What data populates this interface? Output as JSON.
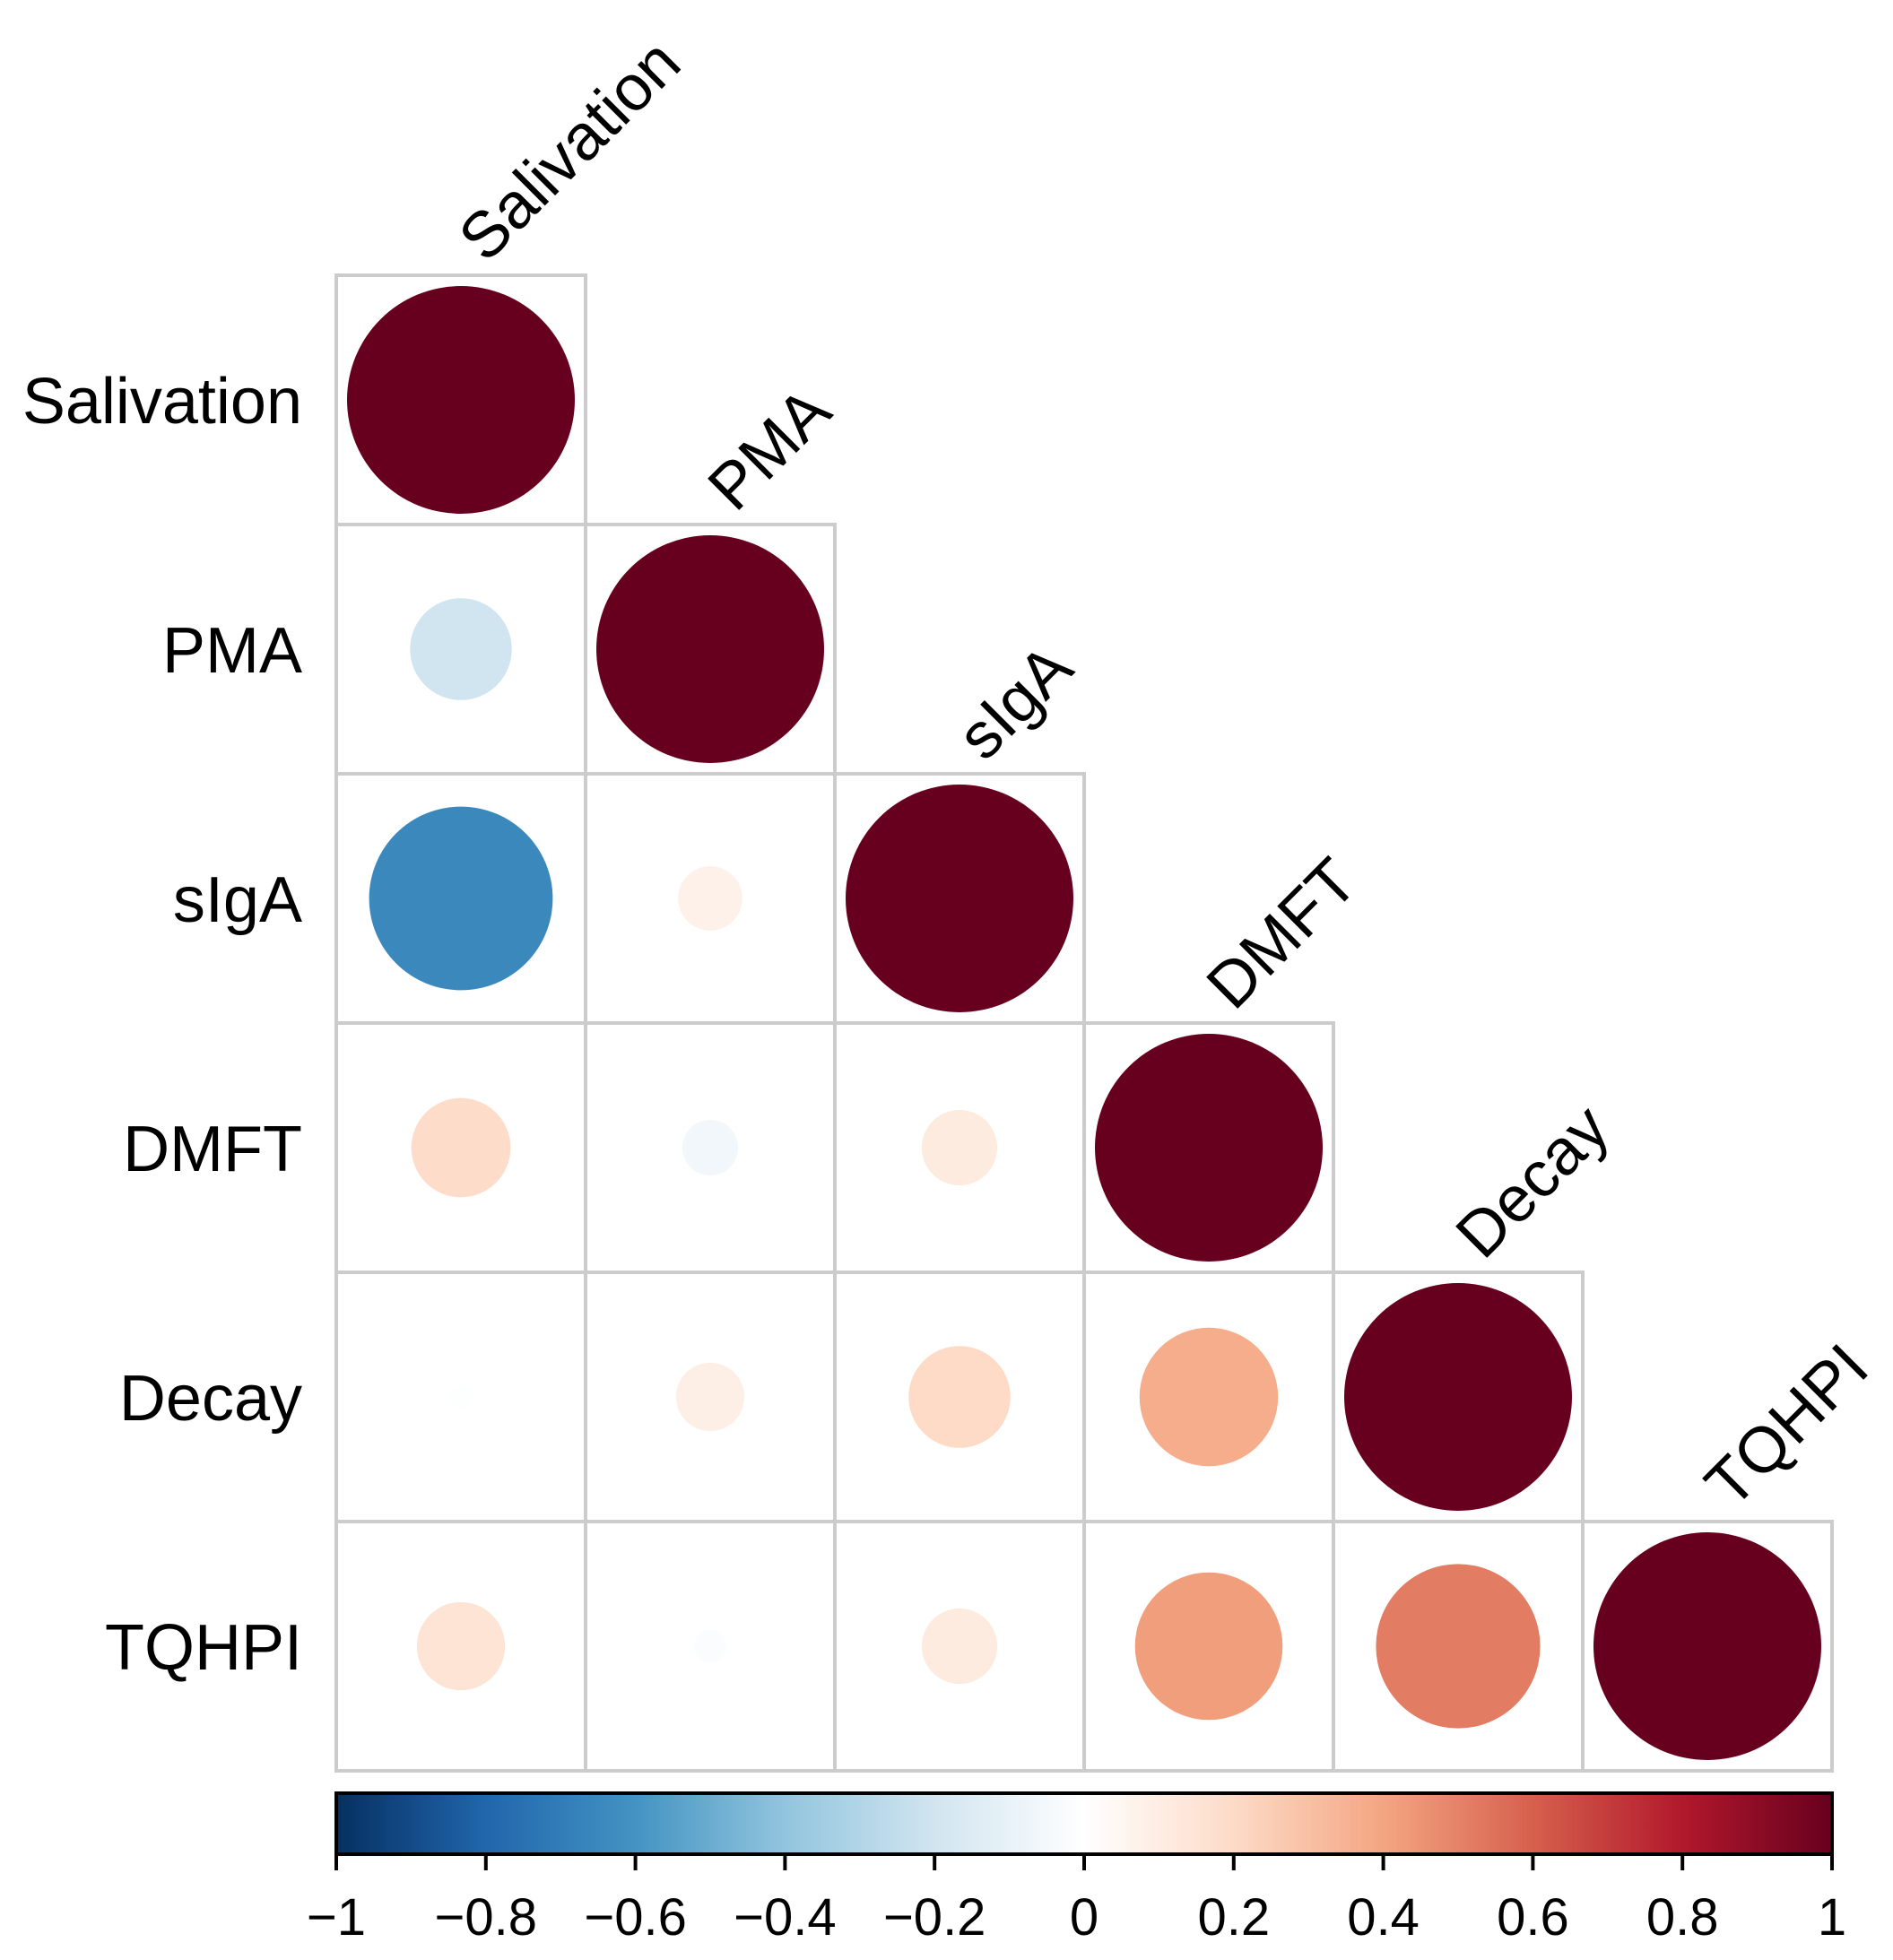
{
  "chart_data": {
    "type": "heatmap",
    "subtype": "correlation-circles-lower-triangle",
    "variables": [
      "Salivation",
      "PMA",
      "sIgA",
      "DMFT",
      "Decay",
      "TQHPI"
    ],
    "matrix": [
      [
        1.0,
        null,
        null,
        null,
        null,
        null
      ],
      [
        -0.2,
        1.0,
        null,
        null,
        null,
        null
      ],
      [
        -0.65,
        0.08,
        1.0,
        null,
        null,
        null
      ],
      [
        0.19,
        -0.06,
        0.11,
        1.0,
        null,
        null
      ],
      [
        -0.01,
        0.09,
        0.2,
        0.37,
        1.0,
        null
      ],
      [
        0.15,
        -0.02,
        0.11,
        0.42,
        0.52,
        1.0
      ]
    ],
    "colorbar": {
      "min": -1,
      "max": 1,
      "ticks": [
        -1,
        -0.8,
        -0.6,
        -0.4,
        -0.2,
        0,
        0.2,
        0.4,
        0.6,
        0.8,
        1
      ],
      "tick_labels": [
        "−1",
        "−0.8",
        "−0.6",
        "−0.4",
        "−0.2",
        "0",
        "0.2",
        "0.4",
        "0.6",
        "0.8",
        "1"
      ],
      "palette": [
        "#053061",
        "#2166AC",
        "#4393C3",
        "#92C5DE",
        "#D1E5F0",
        "#FFFFFF",
        "#FDDBC7",
        "#F4A582",
        "#D6604D",
        "#B2182B",
        "#67001F"
      ]
    },
    "grid_color": "#CCCCCC"
  }
}
